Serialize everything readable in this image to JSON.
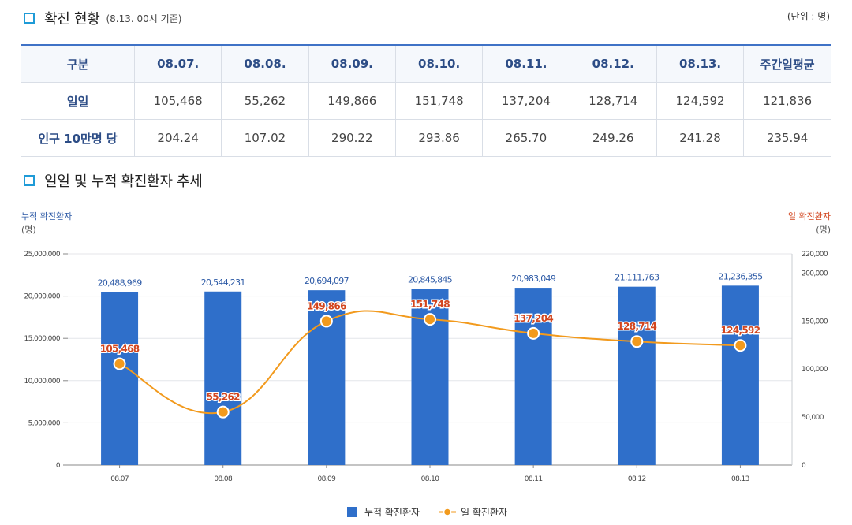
{
  "header": {
    "title": "확진 현황",
    "subtitle": "(8.13. 00시 기준)",
    "unit": "(단위 : 명)"
  },
  "table": {
    "columns": [
      "구분",
      "08.07.",
      "08.08.",
      "08.09.",
      "08.10.",
      "08.11.",
      "08.12.",
      "08.13.",
      "주간일평균"
    ],
    "rows": [
      {
        "label": "일일",
        "values": [
          "105,468",
          "55,262",
          "149,866",
          "151,748",
          "137,204",
          "128,714",
          "124,592",
          "121,836"
        ]
      },
      {
        "label": "인구 10만명 당",
        "values": [
          "204.24",
          "107.02",
          "290.22",
          "293.86",
          "265.70",
          "249.26",
          "241.28",
          "235.94"
        ]
      }
    ]
  },
  "trend_section": {
    "title": "일일 및 누적 확진환자 추세"
  },
  "chart_data": {
    "type": "bar",
    "categories": [
      "08.07",
      "08.08",
      "08.09",
      "08.10",
      "08.11",
      "08.12",
      "08.13"
    ],
    "left_axis": {
      "label": "누적 확진환자",
      "unit": "(명)",
      "ylim": [
        0,
        25000000
      ],
      "ticks": [
        "0",
        "5,000,000",
        "10,000,000",
        "15,000,000",
        "20,000,000",
        "25,000,000"
      ]
    },
    "right_axis": {
      "label": "일 확진환자",
      "unit": "(명)",
      "ylim": [
        0,
        220000
      ],
      "ticks": [
        "0",
        "50,000",
        "100,000",
        "150,000",
        "200,000",
        "220,000"
      ]
    },
    "series": [
      {
        "name": "누적 확진환자",
        "type": "bar",
        "axis": "left",
        "color": "#2f6fca",
        "values": [
          20488969,
          20544231,
          20694097,
          20845845,
          20983049,
          21111763,
          21236355
        ],
        "labels": [
          "20,488,969",
          "20,544,231",
          "20,694,097",
          "20,845,845",
          "20,983,049",
          "21,111,763",
          "21,236,355"
        ]
      },
      {
        "name": "일 확진환자",
        "type": "line",
        "axis": "right",
        "color": "#f29a1d",
        "values": [
          105468,
          55262,
          149866,
          151748,
          137204,
          128714,
          124592
        ],
        "labels": [
          "105,468",
          "55,262",
          "149,866",
          "151,748",
          "137,204",
          "128,714",
          "124,592"
        ]
      }
    ],
    "grid": true,
    "legend": "bottom-center",
    "colors": {
      "left_axis_label": "#2d5aa6",
      "right_axis_label": "#d2451e",
      "point_label": "#d2451e"
    }
  }
}
